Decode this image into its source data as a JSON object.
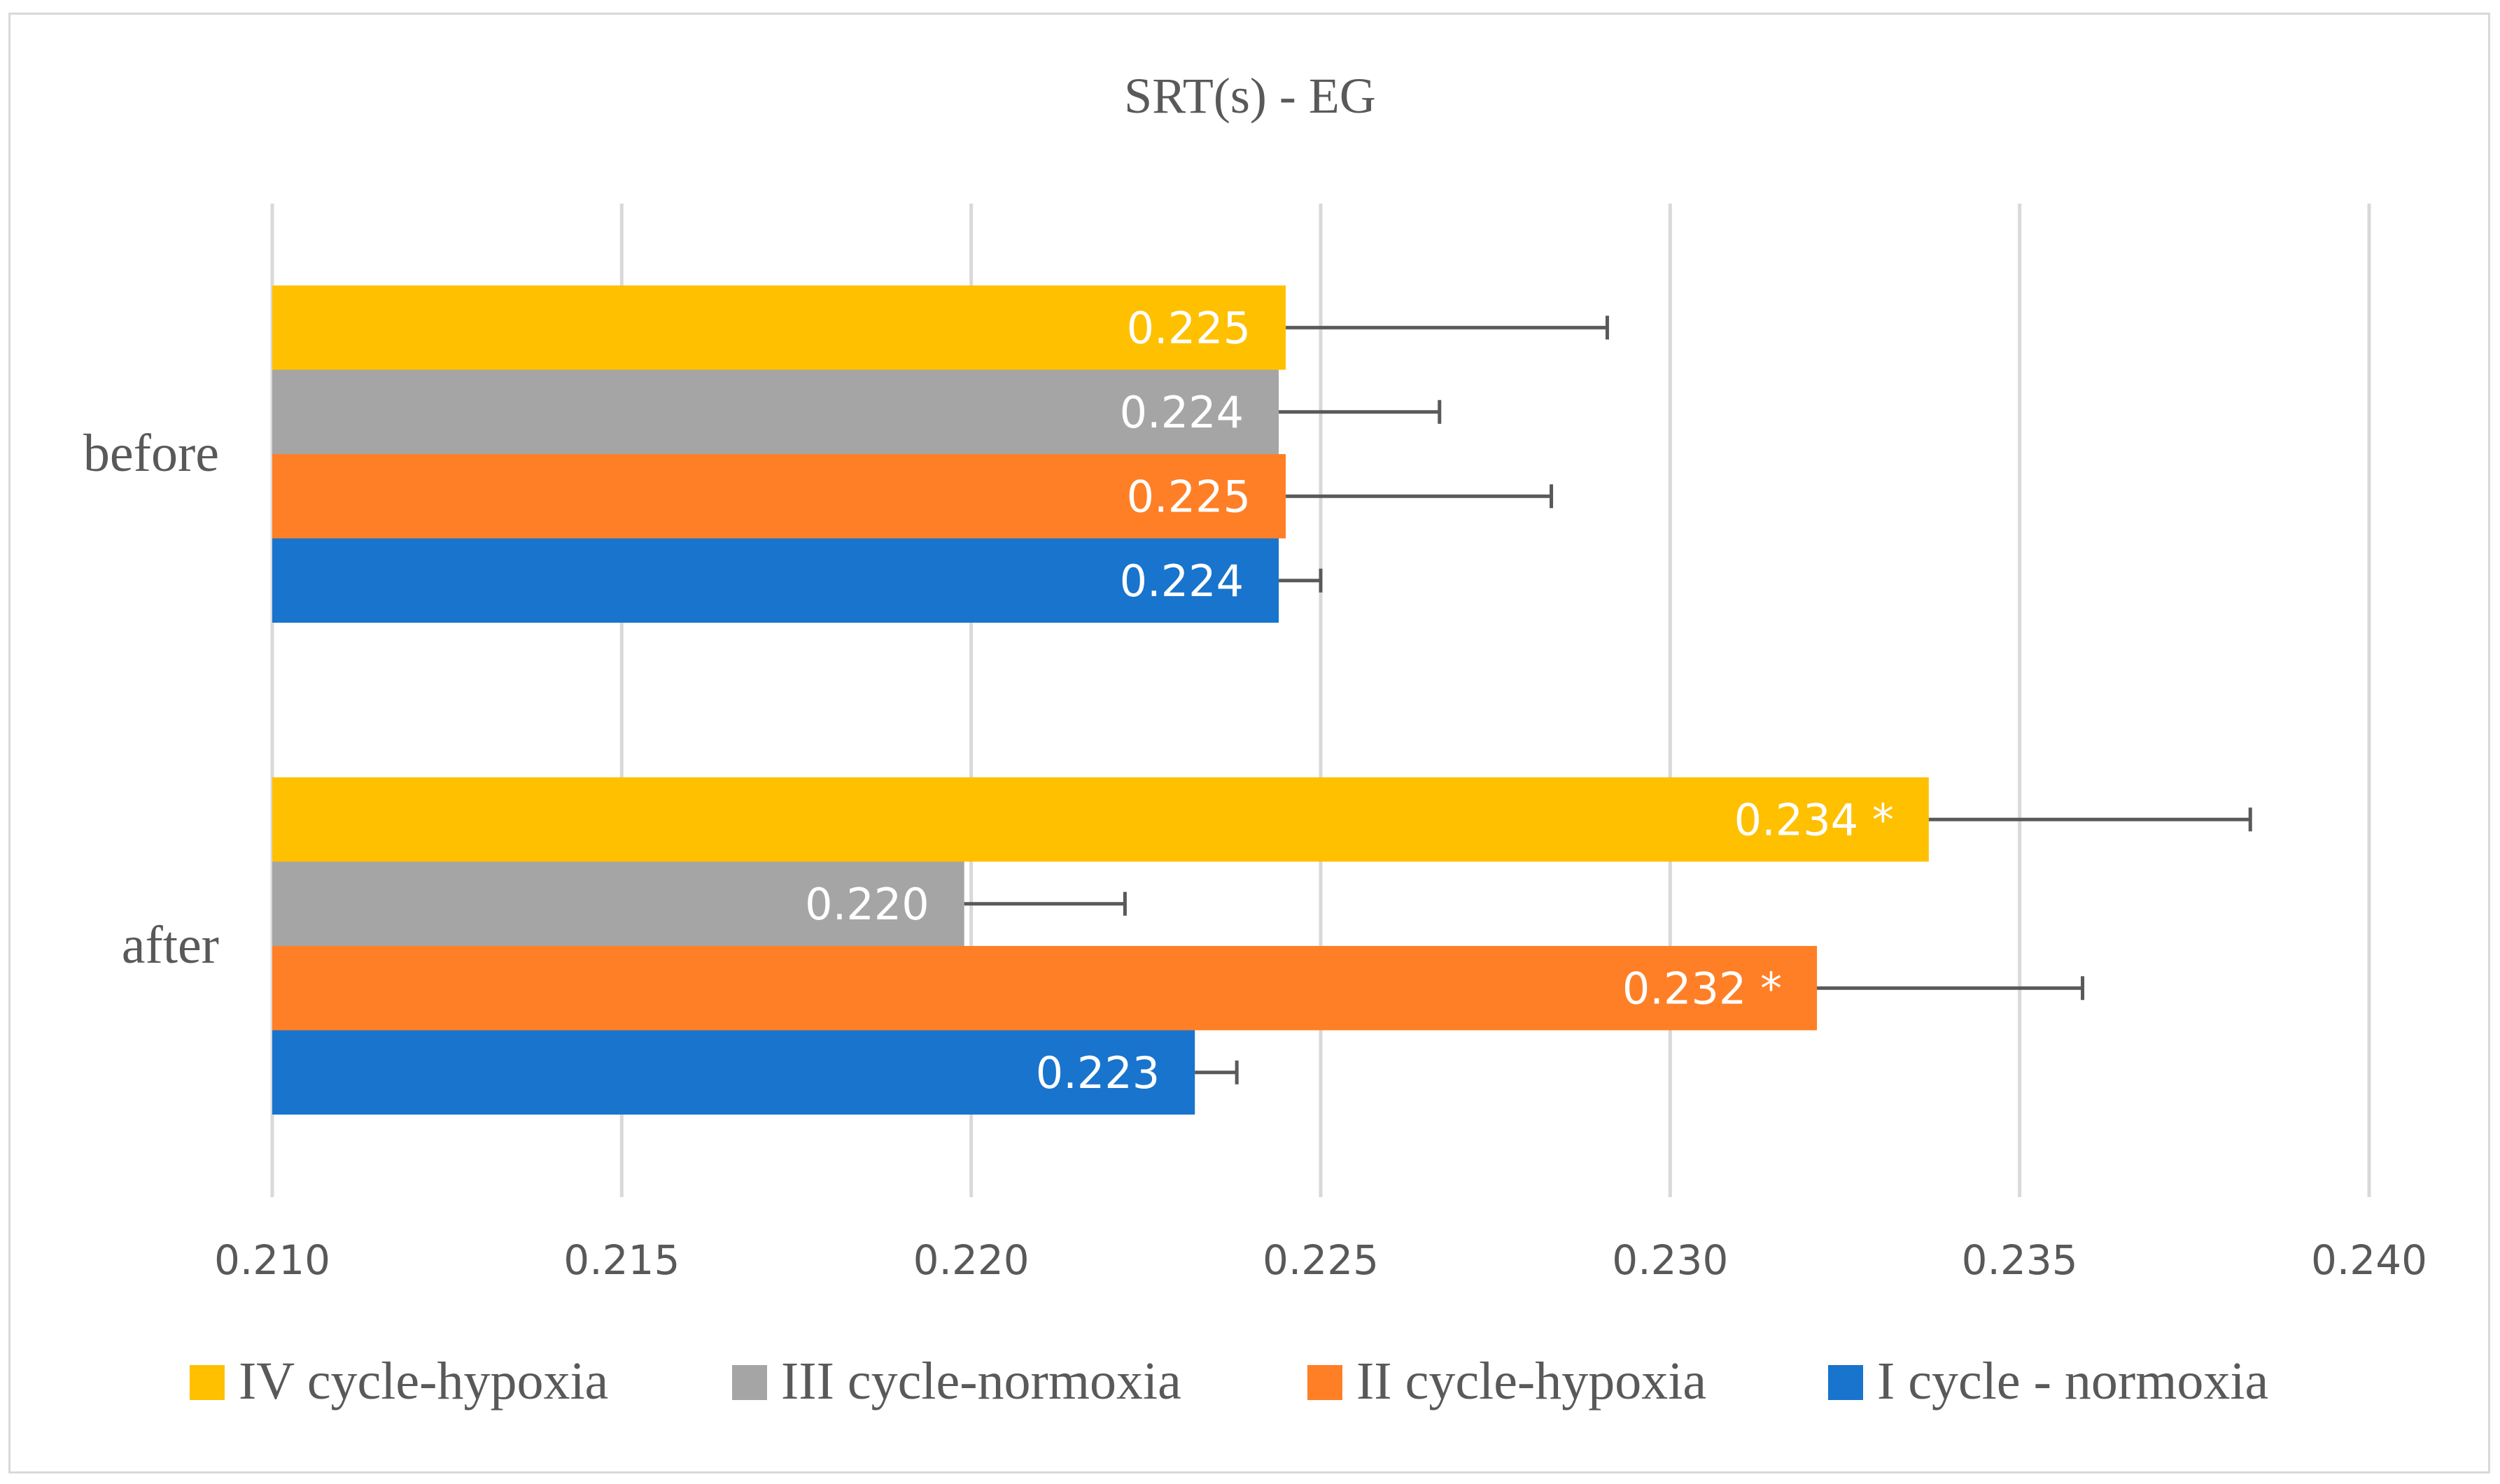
{
  "chart_data": {
    "type": "bar",
    "orientation": "horizontal",
    "title": "SRT(s) - EG",
    "xlabel": "",
    "ylabel": "",
    "xlim": [
      0.21,
      0.24
    ],
    "x_ticks": [
      "0.210",
      "0.215",
      "0.220",
      "0.225",
      "0.230",
      "0.235",
      "0.240"
    ],
    "categories": [
      "before",
      "after"
    ],
    "grid": "vertical",
    "legend_position": "bottom",
    "series": [
      {
        "name": "IV cycle-hypoxia",
        "color": "#FFC000",
        "values": [
          0.2245,
          0.2337
        ],
        "error": [
          0.0046,
          0.0046
        ],
        "labels": [
          "0.225",
          "0.234 *"
        ]
      },
      {
        "name": "III cycle-normoxia",
        "color": "#A5A5A5",
        "values": [
          0.2244,
          0.2199
        ],
        "error": [
          0.0023,
          0.0023
        ],
        "labels": [
          "0.224",
          "0.220"
        ]
      },
      {
        "name": "II cycle-hypoxia",
        "color": "#FF7F27",
        "values": [
          0.2245,
          0.2321
        ],
        "error": [
          0.0038,
          0.0038
        ],
        "labels": [
          "0.225",
          "0.232 *"
        ]
      },
      {
        "name": "I cycle - normoxia",
        "color": "#1874CD",
        "values": [
          0.2244,
          0.2232
        ],
        "error": [
          0.0006,
          0.0006
        ],
        "labels": [
          "0.224",
          "0.223"
        ]
      }
    ]
  }
}
